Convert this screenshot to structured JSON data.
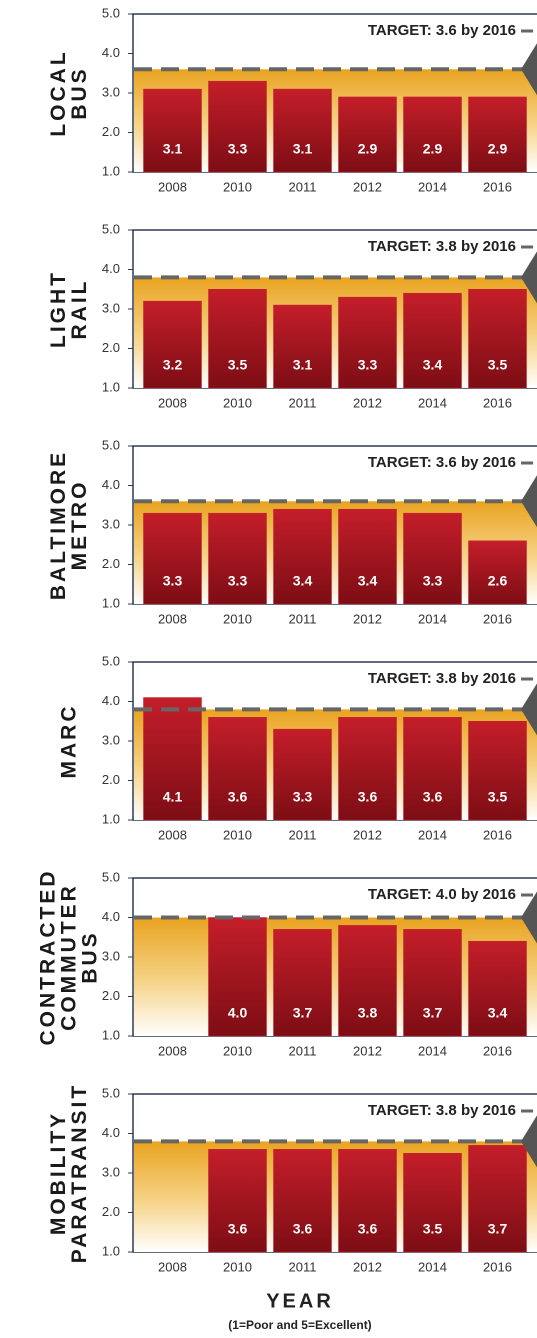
{
  "chart_data": [
    {
      "type": "bar",
      "title_lines": [
        "LOCAL",
        "BUS"
      ],
      "categories": [
        "2008",
        "2010",
        "2011",
        "2012",
        "2014",
        "2016"
      ],
      "values": [
        3.1,
        3.3,
        3.1,
        2.9,
        2.9,
        2.9
      ],
      "color": "#c41e2a",
      "ylim": [
        1,
        5
      ],
      "yticks": [
        {
          "value": 1,
          "label": "1.0"
        },
        {
          "value": 2,
          "label": "2.0"
        },
        {
          "value": 3,
          "label": "3.0"
        },
        {
          "value": 4,
          "label": "4.0"
        },
        {
          "value": 5,
          "label": "5.0"
        }
      ],
      "target": {
        "value": 3.6,
        "label": "TARGET: 3.6 by 2016"
      }
    },
    {
      "type": "bar",
      "title_lines": [
        "LIGHT",
        "RAIL"
      ],
      "categories": [
        "2008",
        "2010",
        "2011",
        "2012",
        "2014",
        "2016"
      ],
      "values": [
        3.2,
        3.5,
        3.1,
        3.3,
        3.4,
        3.5
      ],
      "color": "#c41e2a",
      "ylim": [
        1,
        5
      ],
      "yticks": [
        {
          "value": 1,
          "label": "1.0"
        },
        {
          "value": 2,
          "label": "2.0"
        },
        {
          "value": 3,
          "label": "3.0"
        },
        {
          "value": 4,
          "label": "4.0"
        },
        {
          "value": 5,
          "label": "5.0"
        }
      ],
      "target": {
        "value": 3.8,
        "label": "TARGET: 3.8 by 2016"
      }
    },
    {
      "type": "bar",
      "title_lines": [
        "BALTIMORE",
        "METRO"
      ],
      "categories": [
        "2008",
        "2010",
        "2011",
        "2012",
        "2014",
        "2016"
      ],
      "values": [
        3.3,
        3.3,
        3.4,
        3.4,
        3.3,
        2.6
      ],
      "color": "#c41e2a",
      "ylim": [
        1,
        5
      ],
      "yticks": [
        {
          "value": 1,
          "label": "1.0"
        },
        {
          "value": 2,
          "label": "2.0"
        },
        {
          "value": 3,
          "label": "3.0"
        },
        {
          "value": 4,
          "label": "4.0"
        },
        {
          "value": 5,
          "label": "5.0"
        }
      ],
      "target": {
        "value": 3.6,
        "label": "TARGET: 3.6 by 2016"
      }
    },
    {
      "type": "bar",
      "title_lines": [
        "MARC"
      ],
      "categories": [
        "2008",
        "2010",
        "2011",
        "2012",
        "2014",
        "2016"
      ],
      "values": [
        4.1,
        3.6,
        3.3,
        3.6,
        3.6,
        3.5
      ],
      "color": "#c41e2a",
      "ylim": [
        1,
        5
      ],
      "yticks": [
        {
          "value": 1,
          "label": "1.0"
        },
        {
          "value": 2,
          "label": "2.0"
        },
        {
          "value": 3,
          "label": "3.0"
        },
        {
          "value": 4,
          "label": "4.0"
        },
        {
          "value": 5,
          "label": "5.0"
        }
      ],
      "target": {
        "value": 3.8,
        "label": "TARGET: 3.8 by 2016"
      }
    },
    {
      "type": "bar",
      "title_lines": [
        "CONTRACTED",
        "COMMUTER",
        "BUS"
      ],
      "categories": [
        "2008",
        "2010",
        "2011",
        "2012",
        "2014",
        "2016"
      ],
      "values": [
        null,
        4.0,
        3.7,
        3.8,
        3.7,
        3.4
      ],
      "value_labels": [
        null,
        "4.0",
        "3.7",
        "3.8",
        "3.7",
        "3.4"
      ],
      "color": "#c41e2a",
      "ylim": [
        1,
        5
      ],
      "yticks": [
        {
          "value": 1,
          "label": "1.0"
        },
        {
          "value": 2,
          "label": "2.0"
        },
        {
          "value": 3,
          "label": "3.0"
        },
        {
          "value": 4,
          "label": "4.0"
        },
        {
          "value": 5,
          "label": "5.0"
        }
      ],
      "target": {
        "value": 4.0,
        "label": "TARGET: 4.0 by 2016"
      }
    },
    {
      "type": "bar",
      "title_lines": [
        "MOBILITY",
        "PARATRANSIT"
      ],
      "categories": [
        "2008",
        "2010",
        "2011",
        "2012",
        "2014",
        "2016"
      ],
      "values": [
        null,
        3.6,
        3.6,
        3.6,
        3.5,
        3.7
      ],
      "color": "#c41e2a",
      "ylim": [
        1,
        5
      ],
      "yticks": [
        {
          "value": 1,
          "label": "1.0"
        },
        {
          "value": 2,
          "label": "2.0"
        },
        {
          "value": 3,
          "label": "3.0"
        },
        {
          "value": 4,
          "label": "4.0"
        },
        {
          "value": 5,
          "label": "5.0"
        }
      ],
      "target": {
        "value": 3.8,
        "label": "TARGET: 3.8 by 2016"
      }
    }
  ],
  "axis_title": "YEAR",
  "note": "(1=Poor and 5=Excellent)"
}
